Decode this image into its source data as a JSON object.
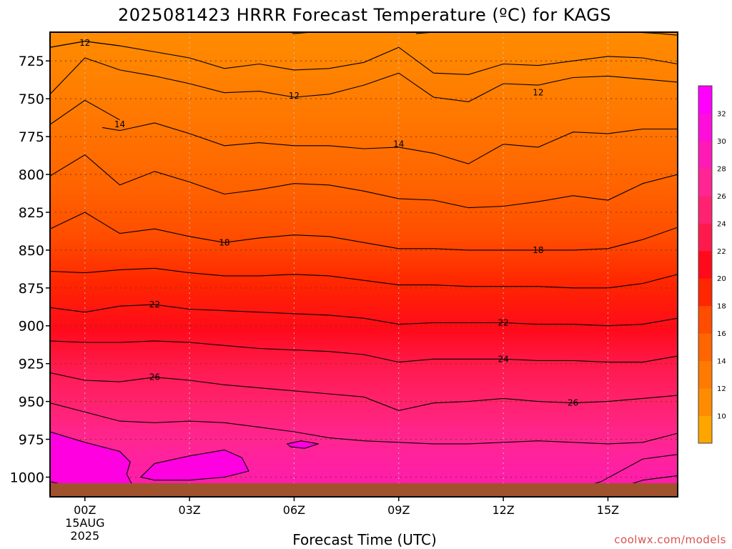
{
  "chart_data": {
    "type": "heatmap",
    "title": "2025081423 HRRR Forecast Temperature (ºC) for KAGS",
    "xlabel": "Forecast Time (UTC)",
    "ylabel": "",
    "x_ticks": [
      {
        "label": "00Z",
        "sub1": "15AUG",
        "sub2": "2025",
        "hour": 0
      },
      {
        "label": "03Z",
        "hour": 3
      },
      {
        "label": "06Z",
        "hour": 6
      },
      {
        "label": "09Z",
        "hour": 9
      },
      {
        "label": "12Z",
        "hour": 12
      },
      {
        "label": "15Z",
        "hour": 15
      }
    ],
    "xlim_hours": [
      -1,
      17
    ],
    "y_ticks": [
      725,
      750,
      775,
      800,
      825,
      850,
      875,
      900,
      925,
      950,
      975,
      1000
    ],
    "ylim_hpa": [
      1013,
      706
    ],
    "color_levels": [
      10,
      12,
      14,
      16,
      18,
      20,
      22,
      24,
      26,
      28,
      30,
      32
    ],
    "colorbar_colors": [
      "#ffa500",
      "#ff8c00",
      "#ff7a00",
      "#ff6500",
      "#ff4d00",
      "#ff2600",
      "#ff0a1a",
      "#ff1a4d",
      "#ff2270",
      "#ff2592",
      "#ff1ab6",
      "#ff0ddb",
      "#ff00ff"
    ],
    "terrain_color": "#a0522d",
    "contours": [
      {
        "level": 12,
        "label": "12",
        "label_at": [
          0,
          13
        ],
        "points": [
          [
            -1,
            716
          ],
          [
            0,
            712
          ],
          [
            1,
            715
          ],
          [
            2,
            719
          ],
          [
            3,
            723
          ],
          [
            4,
            730
          ],
          [
            5,
            727
          ],
          [
            6,
            731
          ],
          [
            7,
            730
          ],
          [
            8,
            726
          ],
          [
            9,
            716
          ],
          [
            10,
            733
          ],
          [
            11,
            734
          ],
          [
            12,
            727
          ],
          [
            13,
            728
          ],
          [
            14,
            725
          ],
          [
            15,
            722
          ],
          [
            16,
            723
          ],
          [
            17,
            727
          ]
        ],
        "label_pts": [
          [
            0,
            713
          ],
          [
            6,
            748
          ],
          [
            13,
            746
          ]
        ]
      },
      {
        "level": 12,
        "label": "",
        "points": [
          [
            5.9,
            706
          ],
          [
            6,
            707
          ],
          [
            6.5,
            706
          ]
        ]
      },
      {
        "level": 12,
        "label": "",
        "points": [
          [
            9.5,
            707
          ],
          [
            10,
            706
          ]
        ]
      },
      {
        "level": 12,
        "label": "",
        "points": [
          [
            15.8,
            706
          ],
          [
            16.5,
            707
          ],
          [
            17,
            708
          ]
        ]
      },
      {
        "level": 12,
        "label": "",
        "points": [
          [
            -1,
            716
          ],
          [
            0,
            712
          ],
          [
            1,
            715
          ]
        ]
      },
      {
        "level": 13,
        "label": "",
        "points": [
          [
            -1,
            747
          ],
          [
            0,
            723
          ],
          [
            1,
            731
          ],
          [
            2,
            735
          ],
          [
            3,
            740
          ],
          [
            4,
            746
          ],
          [
            5,
            745
          ],
          [
            6,
            749
          ],
          [
            7,
            747
          ],
          [
            8,
            741
          ],
          [
            9,
            733
          ],
          [
            10,
            749
          ],
          [
            11,
            752
          ],
          [
            12,
            740
          ],
          [
            13,
            741
          ],
          [
            14,
            736
          ],
          [
            15,
            735
          ],
          [
            16,
            737
          ],
          [
            17,
            739
          ]
        ]
      },
      {
        "level": 14,
        "label": "14",
        "points": [
          [
            -1,
            767
          ],
          [
            0,
            751
          ],
          [
            1,
            764
          ]
        ],
        "label_pts": [
          [
            1,
            767
          ]
        ]
      },
      {
        "level": 14,
        "label": "14",
        "points": [
          [
            0.5,
            769
          ],
          [
            1,
            771
          ],
          [
            2,
            766
          ],
          [
            3,
            773
          ],
          [
            4,
            781
          ],
          [
            5,
            779
          ],
          [
            6,
            781
          ],
          [
            7,
            781
          ],
          [
            8,
            783
          ],
          [
            9,
            782
          ],
          [
            10,
            786
          ],
          [
            11,
            793
          ],
          [
            12,
            780
          ],
          [
            13,
            782
          ],
          [
            14,
            772
          ],
          [
            15,
            773
          ],
          [
            16,
            770
          ],
          [
            17,
            770
          ]
        ],
        "label_pts": [
          [
            9,
            780
          ]
        ]
      },
      {
        "level": 16,
        "label": "",
        "points": [
          [
            -1,
            801
          ],
          [
            0,
            787
          ],
          [
            1,
            807
          ],
          [
            2,
            798
          ],
          [
            3,
            805
          ],
          [
            4,
            813
          ],
          [
            5,
            810
          ],
          [
            6,
            806
          ],
          [
            7,
            807
          ],
          [
            8,
            811
          ],
          [
            9,
            816
          ],
          [
            10,
            817
          ],
          [
            11,
            822
          ],
          [
            12,
            821
          ],
          [
            13,
            818
          ],
          [
            14,
            814
          ],
          [
            15,
            817
          ],
          [
            16,
            806
          ],
          [
            17,
            800
          ]
        ]
      },
      {
        "level": 18,
        "label": "18",
        "points": [
          [
            -1,
            836
          ],
          [
            0,
            825
          ],
          [
            1,
            839
          ],
          [
            2,
            836
          ],
          [
            3,
            841
          ],
          [
            4,
            845
          ],
          [
            5,
            842
          ],
          [
            6,
            840
          ],
          [
            7,
            841
          ],
          [
            8,
            845
          ],
          [
            9,
            849
          ],
          [
            10,
            849
          ],
          [
            11,
            850
          ],
          [
            12,
            850
          ],
          [
            13,
            850
          ],
          [
            14,
            850
          ],
          [
            15,
            849
          ],
          [
            16,
            843
          ],
          [
            17,
            835
          ]
        ],
        "label_pts": [
          [
            4,
            845
          ],
          [
            13,
            850
          ]
        ]
      },
      {
        "level": 20,
        "label": "",
        "points": [
          [
            -1,
            864
          ],
          [
            0,
            865
          ],
          [
            1,
            863
          ],
          [
            2,
            862
          ],
          [
            3,
            865
          ],
          [
            4,
            867
          ],
          [
            5,
            867
          ],
          [
            6,
            866
          ],
          [
            7,
            867
          ],
          [
            8,
            870
          ],
          [
            9,
            873
          ],
          [
            10,
            873
          ],
          [
            11,
            874
          ],
          [
            12,
            874
          ],
          [
            13,
            874
          ],
          [
            14,
            875
          ],
          [
            15,
            875
          ],
          [
            16,
            872
          ],
          [
            17,
            866
          ]
        ]
      },
      {
        "level": 22,
        "label": "22",
        "points": [
          [
            -1,
            888
          ],
          [
            0,
            891
          ],
          [
            1,
            887
          ],
          [
            2,
            886
          ],
          [
            3,
            889
          ],
          [
            4,
            890
          ],
          [
            5,
            891
          ],
          [
            6,
            892
          ],
          [
            7,
            893
          ],
          [
            8,
            895
          ],
          [
            9,
            899
          ],
          [
            10,
            898
          ],
          [
            11,
            898
          ],
          [
            12,
            898
          ],
          [
            13,
            899
          ],
          [
            14,
            899
          ],
          [
            15,
            900
          ],
          [
            16,
            899
          ],
          [
            17,
            895
          ]
        ],
        "label_pts": [
          [
            2,
            886
          ],
          [
            12,
            898
          ]
        ]
      },
      {
        "level": 24,
        "label": "24",
        "points": [
          [
            -1,
            910
          ],
          [
            0,
            911
          ],
          [
            1,
            911
          ],
          [
            2,
            910
          ],
          [
            3,
            911
          ],
          [
            4,
            913
          ],
          [
            5,
            915
          ],
          [
            6,
            916
          ],
          [
            7,
            917
          ],
          [
            8,
            919
          ],
          [
            9,
            924
          ],
          [
            10,
            922
          ],
          [
            11,
            922
          ],
          [
            12,
            922
          ],
          [
            13,
            923
          ],
          [
            14,
            923
          ],
          [
            15,
            924
          ],
          [
            16,
            924
          ],
          [
            17,
            920
          ]
        ],
        "label_pts": [
          [
            12,
            922
          ]
        ]
      },
      {
        "level": 26,
        "label": "26",
        "points": [
          [
            -1,
            931
          ],
          [
            0,
            936
          ],
          [
            1,
            937
          ],
          [
            2,
            934
          ],
          [
            3,
            936
          ],
          [
            4,
            939
          ],
          [
            5,
            941
          ],
          [
            6,
            943
          ],
          [
            7,
            945
          ],
          [
            8,
            947
          ],
          [
            9,
            956
          ],
          [
            10,
            951
          ],
          [
            11,
            950
          ],
          [
            12,
            948
          ],
          [
            13,
            950
          ],
          [
            14,
            951
          ],
          [
            15,
            950
          ],
          [
            16,
            948
          ],
          [
            17,
            946
          ]
        ],
        "label_pts": [
          [
            2,
            934
          ],
          [
            14,
            951
          ]
        ]
      },
      {
        "level": 28,
        "label": "",
        "points": [
          [
            -1,
            951
          ],
          [
            0,
            957
          ],
          [
            1,
            963
          ],
          [
            2,
            964
          ],
          [
            3,
            963
          ],
          [
            4,
            964
          ],
          [
            5,
            967
          ],
          [
            6,
            970
          ],
          [
            7,
            974
          ],
          [
            8,
            976
          ],
          [
            9,
            977
          ],
          [
            10,
            978
          ],
          [
            11,
            978
          ],
          [
            12,
            977
          ],
          [
            13,
            976
          ],
          [
            14,
            977
          ],
          [
            15,
            978
          ],
          [
            16,
            977
          ],
          [
            17,
            971
          ]
        ]
      },
      {
        "level": 30,
        "label": "",
        "closed": true,
        "points": [
          [
            -1,
            970
          ],
          [
            0,
            977
          ],
          [
            1,
            983
          ],
          [
            1.3,
            990
          ],
          [
            1.2,
            998
          ],
          [
            1.4,
            1007
          ],
          [
            1.3,
            1011
          ],
          [
            -0.7,
            1011
          ],
          [
            -0.6,
            1005
          ],
          [
            -1,
            1003
          ]
        ]
      },
      {
        "level": 30,
        "label": "",
        "closed": true,
        "points": [
          [
            1.6,
            1000
          ],
          [
            2,
            991
          ],
          [
            3,
            986
          ],
          [
            4,
            982
          ],
          [
            4.5,
            987
          ],
          [
            4.7,
            996
          ],
          [
            4,
            1000
          ],
          [
            3,
            1002
          ],
          [
            2,
            1002
          ]
        ]
      },
      {
        "level": 30,
        "label": "",
        "closed": true,
        "points": [
          [
            5.8,
            978
          ],
          [
            6.2,
            976
          ],
          [
            6.7,
            978
          ],
          [
            6.3,
            981
          ],
          [
            5.9,
            980
          ]
        ]
      },
      {
        "level": 30,
        "label": "",
        "points": [
          [
            8,
            1008
          ],
          [
            9,
            1005
          ],
          [
            10,
            1009
          ]
        ]
      },
      {
        "level": 30,
        "label": "",
        "points": [
          [
            13.5,
            1012
          ],
          [
            14.8,
            1003
          ],
          [
            16,
            988
          ],
          [
            17,
            985
          ]
        ]
      },
      {
        "level": 32,
        "label": "",
        "points": [
          [
            14.8,
            1011
          ],
          [
            16,
            1002
          ],
          [
            17,
            999
          ]
        ]
      }
    ],
    "grid": true
  },
  "credit": "coolwx.com/models"
}
